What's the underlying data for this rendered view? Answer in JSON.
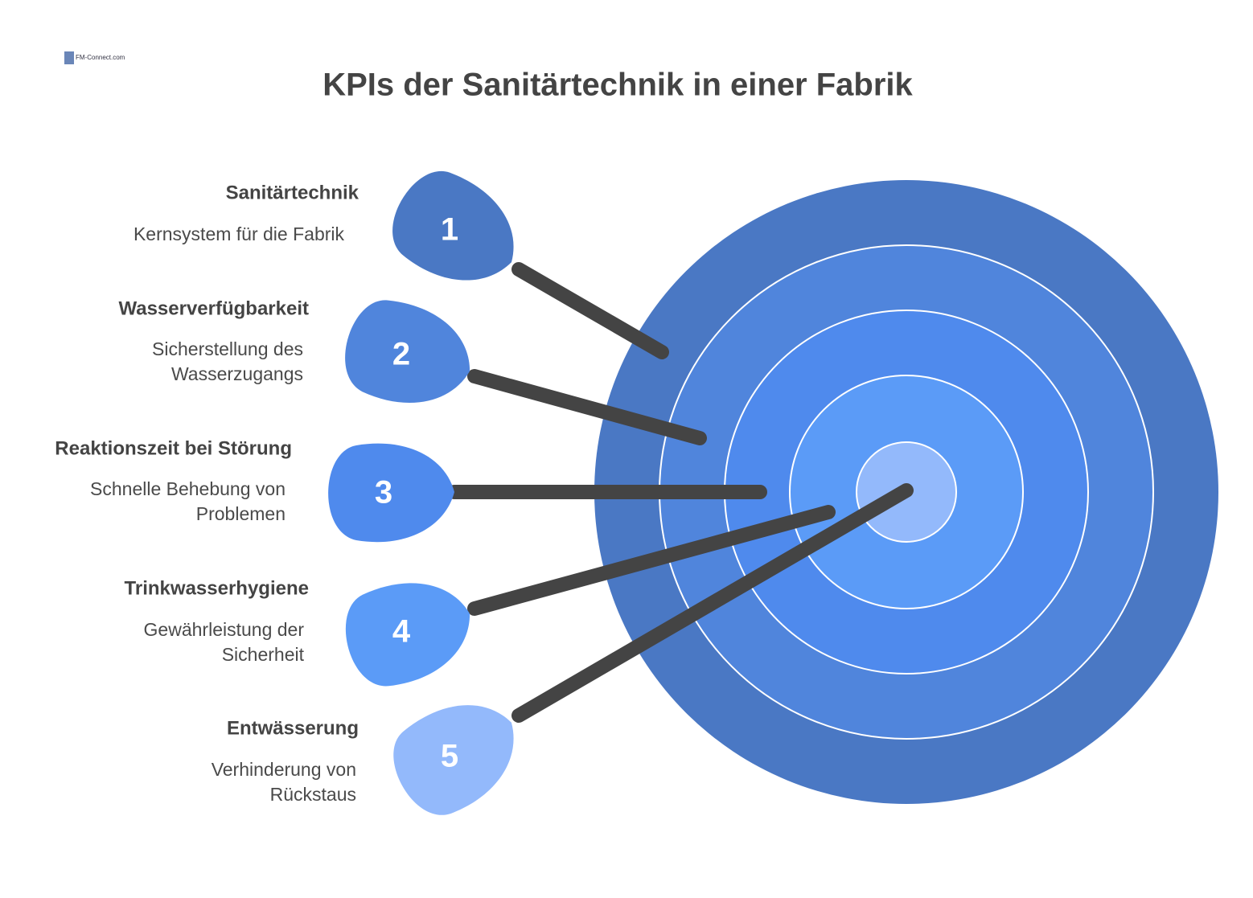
{
  "logo": "FM-Connect.com",
  "title": "KPIs der Sanitärtechnik in einer Fabrik",
  "items": [
    {
      "number": "1",
      "title": "Sanitärtechnik",
      "description": [
        "Kernsystem für die Fabrik"
      ]
    },
    {
      "number": "2",
      "title": "Wasserverfügbarkeit",
      "description": [
        "Sicherstellung des",
        "Wasserzugangs"
      ]
    },
    {
      "number": "3",
      "title": "Reaktionszeit bei Störung",
      "description": [
        "Schnelle Behebung von",
        "Problemen"
      ]
    },
    {
      "number": "4",
      "title": "Trinkwasserhygiene",
      "description": [
        "Gewährleistung der",
        "Sicherheit"
      ]
    },
    {
      "number": "5",
      "title": "Entwässerung",
      "description": [
        "Verhinderung von",
        "Rückstaus"
      ]
    }
  ]
}
